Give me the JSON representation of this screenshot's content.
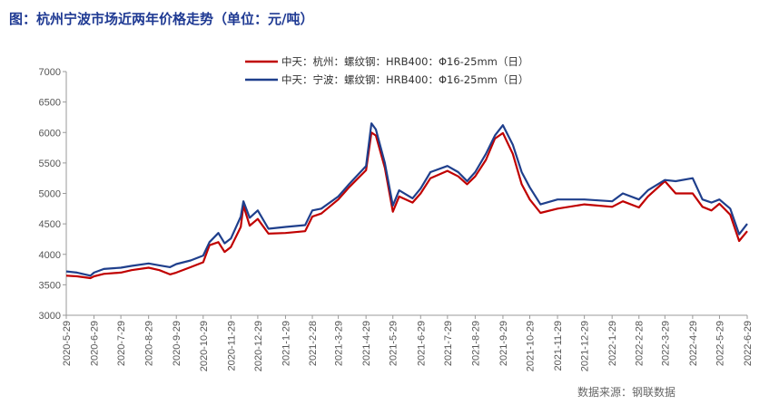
{
  "title": "图：杭州宁波市场近两年价格走势（单位：元/吨）",
  "source": "数据来源：钢联数据",
  "colors": {
    "hangzhou": "#c00000",
    "ningbo": "#1f3f8c"
  },
  "chart_data": {
    "type": "line",
    "title": "图：杭州宁波市场近两年价格走势（单位：元/吨）",
    "ylim": [
      3000,
      7000
    ],
    "yticks": [
      3000,
      3500,
      4000,
      4500,
      5000,
      5500,
      6000,
      6500,
      7000
    ],
    "xticks": [
      "2020-5-29",
      "2020-6-29",
      "2020-7-29",
      "2020-8-29",
      "2020-9-29",
      "2020-10-29",
      "2020-11-29",
      "2020-12-29",
      "2021-1-29",
      "2021-2-28",
      "2021-3-29",
      "2021-4-29",
      "2021-5-29",
      "2021-6-29",
      "2021-7-29",
      "2021-8-29",
      "2021-9-29",
      "2021-10-29",
      "2021-11-29",
      "2021-12-29",
      "2022-1-29",
      "2022-2-28",
      "2022-3-29",
      "2022-4-29",
      "2022-5-29",
      "2022-6-29"
    ],
    "legend_position": "top",
    "grid": false,
    "series": [
      {
        "name": "中天：杭州：螺纹钢：HRB400：Φ16-25mm（日）",
        "color": "#c00000",
        "points": [
          [
            "2020-5-29",
            3650
          ],
          [
            "2020-6-10",
            3640
          ],
          [
            "2020-6-25",
            3610
          ],
          [
            "2020-6-29",
            3640
          ],
          [
            "2020-7-10",
            3680
          ],
          [
            "2020-7-29",
            3700
          ],
          [
            "2020-8-10",
            3740
          ],
          [
            "2020-8-29",
            3780
          ],
          [
            "2020-9-10",
            3740
          ],
          [
            "2020-9-22",
            3670
          ],
          [
            "2020-9-29",
            3700
          ],
          [
            "2020-10-15",
            3790
          ],
          [
            "2020-10-29",
            3870
          ],
          [
            "2020-11-05",
            4150
          ],
          [
            "2020-11-15",
            4200
          ],
          [
            "2020-11-22",
            4040
          ],
          [
            "2020-11-29",
            4120
          ],
          [
            "2020-12-10",
            4450
          ],
          [
            "2020-12-13",
            4800
          ],
          [
            "2020-12-20",
            4470
          ],
          [
            "2020-12-29",
            4580
          ],
          [
            "2021-1-10",
            4340
          ],
          [
            "2021-1-29",
            4350
          ],
          [
            "2021-2-20",
            4380
          ],
          [
            "2021-2-28",
            4620
          ],
          [
            "2021-3-10",
            4670
          ],
          [
            "2021-3-29",
            4900
          ],
          [
            "2021-4-10",
            5100
          ],
          [
            "2021-4-29",
            5380
          ],
          [
            "2021-5-05",
            6000
          ],
          [
            "2021-5-10",
            5950
          ],
          [
            "2021-5-20",
            5420
          ],
          [
            "2021-5-29",
            4700
          ],
          [
            "2021-6-05",
            4950
          ],
          [
            "2021-6-20",
            4850
          ],
          [
            "2021-6-29",
            5000
          ],
          [
            "2021-7-10",
            5250
          ],
          [
            "2021-7-29",
            5370
          ],
          [
            "2021-8-10",
            5280
          ],
          [
            "2021-8-20",
            5150
          ],
          [
            "2021-8-29",
            5280
          ],
          [
            "2021-9-10",
            5550
          ],
          [
            "2021-9-20",
            5900
          ],
          [
            "2021-9-29",
            5990
          ],
          [
            "2021-10-10",
            5650
          ],
          [
            "2021-10-20",
            5150
          ],
          [
            "2021-10-29",
            4900
          ],
          [
            "2021-11-10",
            4680
          ],
          [
            "2021-11-29",
            4750
          ],
          [
            "2021-12-29",
            4820
          ],
          [
            "2022-1-29",
            4780
          ],
          [
            "2022-2-10",
            4870
          ],
          [
            "2022-2-28",
            4770
          ],
          [
            "2022-3-10",
            4950
          ],
          [
            "2022-3-29",
            5200
          ],
          [
            "2022-4-10",
            5000
          ],
          [
            "2022-4-29",
            5000
          ],
          [
            "2022-5-10",
            4780
          ],
          [
            "2022-5-20",
            4720
          ],
          [
            "2022-5-29",
            4830
          ],
          [
            "2022-6-10",
            4650
          ],
          [
            "2022-6-20",
            4220
          ],
          [
            "2022-6-29",
            4380
          ]
        ]
      },
      {
        "name": "中天：宁波：螺纹钢：HRB400：Φ16-25mm（日）",
        "color": "#1f3f8c",
        "points": [
          [
            "2020-5-29",
            3720
          ],
          [
            "2020-6-10",
            3700
          ],
          [
            "2020-6-25",
            3650
          ],
          [
            "2020-6-29",
            3700
          ],
          [
            "2020-7-10",
            3760
          ],
          [
            "2020-7-29",
            3780
          ],
          [
            "2020-8-10",
            3810
          ],
          [
            "2020-8-29",
            3850
          ],
          [
            "2020-9-10",
            3820
          ],
          [
            "2020-9-22",
            3790
          ],
          [
            "2020-9-29",
            3840
          ],
          [
            "2020-10-15",
            3900
          ],
          [
            "2020-10-29",
            3980
          ],
          [
            "2020-11-05",
            4200
          ],
          [
            "2020-11-15",
            4350
          ],
          [
            "2020-11-22",
            4180
          ],
          [
            "2020-11-29",
            4260
          ],
          [
            "2020-12-10",
            4620
          ],
          [
            "2020-12-13",
            4870
          ],
          [
            "2020-12-20",
            4600
          ],
          [
            "2020-12-29",
            4720
          ],
          [
            "2021-1-10",
            4420
          ],
          [
            "2021-1-29",
            4450
          ],
          [
            "2021-2-20",
            4480
          ],
          [
            "2021-2-28",
            4720
          ],
          [
            "2021-3-10",
            4750
          ],
          [
            "2021-3-29",
            4950
          ],
          [
            "2021-4-10",
            5150
          ],
          [
            "2021-4-29",
            5450
          ],
          [
            "2021-5-05",
            6150
          ],
          [
            "2021-5-10",
            6050
          ],
          [
            "2021-5-20",
            5500
          ],
          [
            "2021-5-29",
            4800
          ],
          [
            "2021-6-05",
            5050
          ],
          [
            "2021-6-20",
            4920
          ],
          [
            "2021-6-29",
            5080
          ],
          [
            "2021-7-10",
            5350
          ],
          [
            "2021-7-29",
            5450
          ],
          [
            "2021-8-10",
            5350
          ],
          [
            "2021-8-20",
            5200
          ],
          [
            "2021-8-29",
            5350
          ],
          [
            "2021-9-10",
            5650
          ],
          [
            "2021-9-20",
            5950
          ],
          [
            "2021-9-29",
            6120
          ],
          [
            "2021-10-10",
            5800
          ],
          [
            "2021-10-20",
            5350
          ],
          [
            "2021-10-29",
            5100
          ],
          [
            "2021-11-10",
            4820
          ],
          [
            "2021-11-29",
            4900
          ],
          [
            "2021-12-29",
            4900
          ],
          [
            "2022-1-29",
            4870
          ],
          [
            "2022-2-10",
            5000
          ],
          [
            "2022-2-28",
            4900
          ],
          [
            "2022-3-10",
            5050
          ],
          [
            "2022-3-29",
            5220
          ],
          [
            "2022-4-10",
            5200
          ],
          [
            "2022-4-29",
            5250
          ],
          [
            "2022-5-10",
            4900
          ],
          [
            "2022-5-20",
            4850
          ],
          [
            "2022-5-29",
            4900
          ],
          [
            "2022-6-10",
            4750
          ],
          [
            "2022-6-20",
            4330
          ],
          [
            "2022-6-29",
            4500
          ]
        ]
      }
    ]
  }
}
